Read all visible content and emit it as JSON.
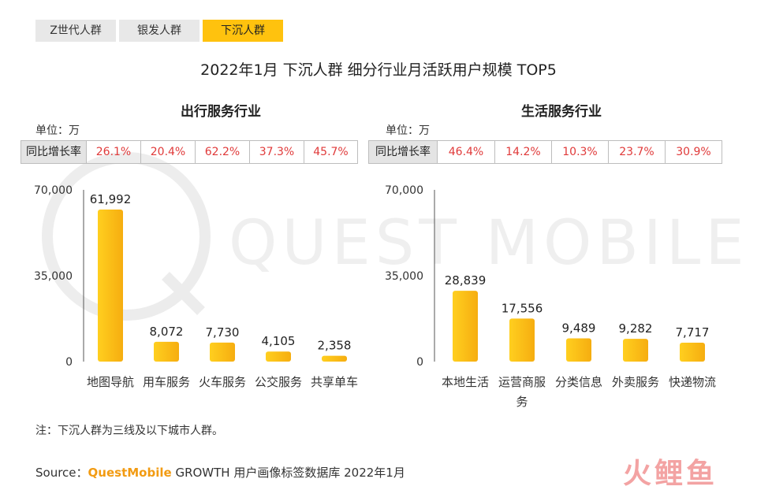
{
  "tabs": [
    {
      "label": "Z世代人群",
      "active": false
    },
    {
      "label": "银发人群",
      "active": false
    },
    {
      "label": "下沉人群",
      "active": true
    }
  ],
  "title": "2022年1月 下沉人群 细分行业月活跃用户规模 TOP5",
  "watermark": "QUEST MOBILE",
  "left_panel": {
    "title": "出行服务行业",
    "unit": "单位：万",
    "growth_label": "同比增长率",
    "growth": [
      "26.1%",
      "20.4%",
      "62.2%",
      "37.3%",
      "45.7%"
    ]
  },
  "right_panel": {
    "title": "生活服务行业",
    "unit": "单位：万",
    "growth_label": "同比增长率",
    "growth": [
      "46.4%",
      "14.2%",
      "10.3%",
      "23.7%",
      "30.9%"
    ]
  },
  "chart_data": [
    {
      "type": "bar",
      "title": "出行服务行业",
      "categories": [
        "地图导航",
        "用车服务",
        "火车服务",
        "公交服务",
        "共享单车"
      ],
      "values": [
        61992,
        8072,
        7730,
        4105,
        2358
      ],
      "value_labels": [
        "61,992",
        "8,072",
        "7,730",
        "4,105",
        "2,358"
      ],
      "yticks": [
        "0",
        "35,000",
        "70,000"
      ],
      "ylim": [
        0,
        70000
      ],
      "grid": false,
      "bar_color": "#ffc20e"
    },
    {
      "type": "bar",
      "title": "生活服务行业",
      "categories": [
        "本地生活",
        "运营商服务",
        "分类信息",
        "外卖服务",
        "快递物流"
      ],
      "category_lines": [
        [
          "本地生活"
        ],
        [
          "运营商服",
          "务"
        ],
        [
          "分类信息"
        ],
        [
          "外卖服务"
        ],
        [
          "快递物流"
        ]
      ],
      "values": [
        28839,
        17556,
        9489,
        9282,
        7717
      ],
      "value_labels": [
        "28,839",
        "17,556",
        "9,489",
        "9,282",
        "7,717"
      ],
      "yticks": [
        "0",
        "35,000",
        "70,000"
      ],
      "ylim": [
        0,
        70000
      ],
      "grid": false,
      "bar_color": "#ffc20e"
    }
  ],
  "note": "注：下沉人群为三线及以下城市人群。",
  "source": {
    "prefix": "Source：",
    "brand": "QuestMobile",
    "text": " GROWTH 用户画像标签数据库 2022年1月"
  },
  "logo_text": "火鲤鱼"
}
